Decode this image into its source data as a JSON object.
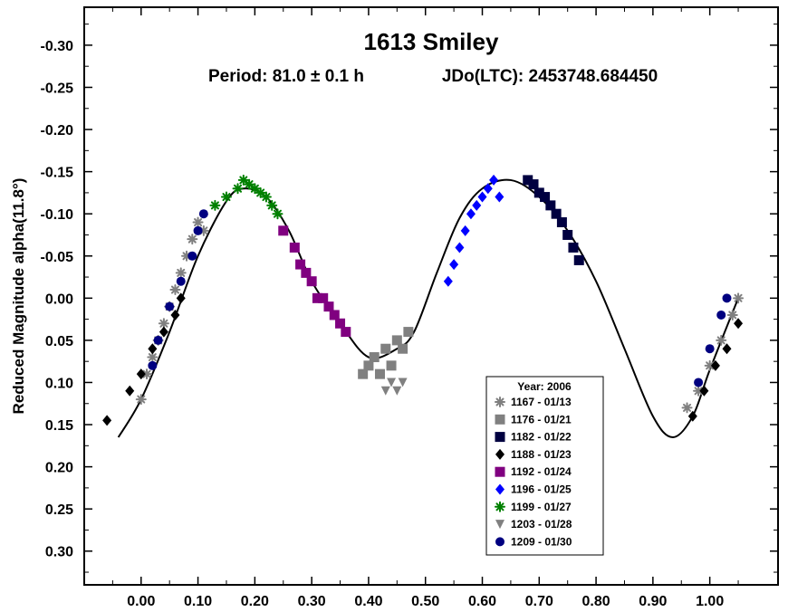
{
  "chart_data": {
    "type": "scatter",
    "title": "1613 Smiley",
    "subtitle_period": "Period: 81.0 ± 0.1 h",
    "subtitle_epoch": "JDo(LTC): 2453748.684450",
    "xlabel": "",
    "ylabel": "Reduced Magnitude alpha(11.8°)",
    "xlim": [
      -0.1,
      1.12
    ],
    "ylim": [
      -0.345,
      0.34
    ],
    "y_inverted": true,
    "x_ticks": [
      "0.00",
      "0.10",
      "0.20",
      "0.30",
      "0.40",
      "0.50",
      "0.60",
      "0.70",
      "0.80",
      "0.90",
      "1.00"
    ],
    "y_ticks": [
      "-0.30",
      "-0.25",
      "-0.20",
      "-0.15",
      "-0.10",
      "-0.05",
      "0.00",
      "0.05",
      "0.10",
      "0.15",
      "0.20",
      "0.25",
      "0.30"
    ],
    "grid": false,
    "legend_title": "Year: 2006",
    "legend_position": "bottom-center",
    "fit_curve": {
      "x": [
        -0.04,
        0.0,
        0.05,
        0.1,
        0.15,
        0.18,
        0.22,
        0.26,
        0.3,
        0.35,
        0.4,
        0.45,
        0.48,
        0.52,
        0.56,
        0.6,
        0.65,
        0.7,
        0.75,
        0.8,
        0.85,
        0.9,
        0.935,
        0.97,
        1.0,
        1.05
      ],
      "y": [
        0.165,
        0.12,
        0.04,
        -0.05,
        -0.115,
        -0.13,
        -0.12,
        -0.08,
        -0.02,
        0.03,
        0.07,
        0.06,
        0.04,
        -0.03,
        -0.095,
        -0.13,
        -0.14,
        -0.12,
        -0.08,
        -0.02,
        0.06,
        0.14,
        0.165,
        0.14,
        0.085,
        0.0
      ]
    },
    "series": [
      {
        "name": "1167 - 01/13",
        "color": "#808080",
        "marker": "asterisk",
        "x": [
          0.0,
          0.01,
          0.02,
          0.03,
          0.04,
          0.05,
          0.06,
          0.07,
          0.08,
          0.09,
          0.1,
          0.11,
          0.96,
          0.98,
          1.0,
          1.02,
          1.04,
          1.05
        ],
        "y": [
          0.12,
          0.09,
          0.07,
          0.05,
          0.03,
          0.01,
          -0.01,
          -0.03,
          -0.05,
          -0.07,
          -0.09,
          -0.08,
          0.13,
          0.11,
          0.08,
          0.05,
          0.02,
          0.0
        ]
      },
      {
        "name": "1176 - 01/21",
        "color": "#808080",
        "marker": "square",
        "x": [
          0.39,
          0.4,
          0.41,
          0.42,
          0.43,
          0.44,
          0.45,
          0.46,
          0.47
        ],
        "y": [
          0.09,
          0.08,
          0.07,
          0.09,
          0.06,
          0.08,
          0.05,
          0.06,
          0.04
        ]
      },
      {
        "name": "1182 - 01/22",
        "color": "#000040",
        "marker": "square",
        "x": [
          0.68,
          0.69,
          0.7,
          0.71,
          0.72,
          0.73,
          0.74,
          0.75,
          0.76,
          0.77
        ],
        "y": [
          -0.14,
          -0.135,
          -0.125,
          -0.12,
          -0.11,
          -0.1,
          -0.09,
          -0.075,
          -0.06,
          -0.045
        ]
      },
      {
        "name": "1188 - 01/23",
        "color": "#000000",
        "marker": "diamond",
        "x": [
          -0.06,
          -0.02,
          0.0,
          0.02,
          0.04,
          0.06,
          0.07,
          0.97,
          0.99,
          1.01,
          1.03,
          1.05
        ],
        "y": [
          0.145,
          0.11,
          0.09,
          0.06,
          0.04,
          0.02,
          0.0,
          0.14,
          0.11,
          0.08,
          0.06,
          0.03
        ]
      },
      {
        "name": "1192 - 01/24",
        "color": "#800080",
        "marker": "square",
        "x": [
          0.25,
          0.27,
          0.28,
          0.29,
          0.3,
          0.31,
          0.32,
          0.33,
          0.34,
          0.35,
          0.36
        ],
        "y": [
          -0.08,
          -0.06,
          -0.04,
          -0.03,
          -0.02,
          0.0,
          0.0,
          0.01,
          0.02,
          0.03,
          0.04
        ]
      },
      {
        "name": "1196 - 01/25",
        "color": "#0000ff",
        "marker": "diamond",
        "x": [
          0.54,
          0.55,
          0.56,
          0.57,
          0.58,
          0.59,
          0.6,
          0.61,
          0.62,
          0.63
        ],
        "y": [
          -0.02,
          -0.04,
          -0.06,
          -0.08,
          -0.1,
          -0.11,
          -0.12,
          -0.13,
          -0.14,
          -0.12
        ]
      },
      {
        "name": "1199 - 01/27",
        "color": "#008000",
        "marker": "asterisk",
        "x": [
          0.13,
          0.15,
          0.17,
          0.18,
          0.19,
          0.2,
          0.21,
          0.22,
          0.23,
          0.24
        ],
        "y": [
          -0.11,
          -0.12,
          -0.13,
          -0.14,
          -0.135,
          -0.13,
          -0.125,
          -0.12,
          -0.11,
          -0.1
        ]
      },
      {
        "name": "1203 - 01/28",
        "color": "#808080",
        "marker": "triangle-down",
        "x": [
          0.43,
          0.44,
          0.45,
          0.46
        ],
        "y": [
          0.11,
          0.1,
          0.11,
          0.1
        ]
      },
      {
        "name": "1209 - 01/30",
        "color": "#000080",
        "marker": "circle",
        "x": [
          0.02,
          0.03,
          0.05,
          0.07,
          0.09,
          0.1,
          0.11,
          0.98,
          1.0,
          1.02,
          1.03
        ],
        "y": [
          0.08,
          0.05,
          0.01,
          -0.02,
          -0.05,
          -0.08,
          -0.1,
          0.1,
          0.06,
          0.02,
          0.0
        ]
      }
    ]
  }
}
